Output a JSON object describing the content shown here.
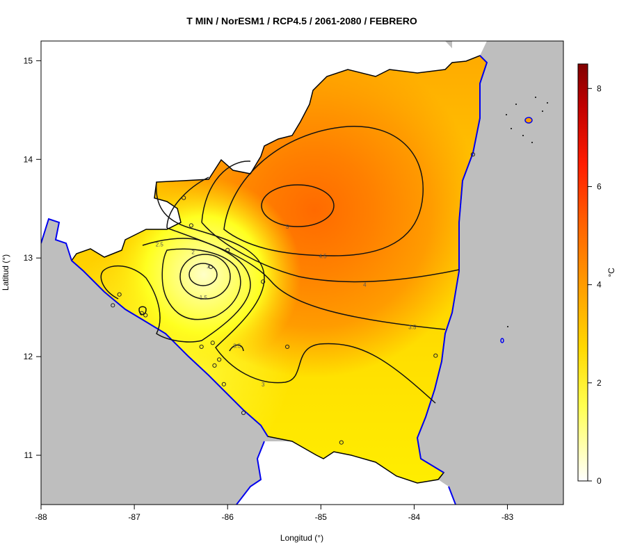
{
  "title": "T MIN / NorESM1 / RCP4.5 / 2061-2080 / FEBRERO",
  "x_axis": {
    "label": "Longitud (°)",
    "ticks": [
      {
        "value": -88,
        "label": "-88"
      },
      {
        "value": -87,
        "label": "-87"
      },
      {
        "value": -86,
        "label": "-86"
      },
      {
        "value": -85,
        "label": "-85"
      },
      {
        "value": -84,
        "label": "-84"
      },
      {
        "value": -83,
        "label": "-83"
      }
    ],
    "range": [
      -88,
      -82.4
    ]
  },
  "y_axis": {
    "label": "Latitud (°)",
    "ticks": [
      {
        "value": 11,
        "label": "11"
      },
      {
        "value": 12,
        "label": "12"
      },
      {
        "value": 13,
        "label": "13"
      },
      {
        "value": 14,
        "label": "14"
      },
      {
        "value": 15,
        "label": "15"
      }
    ],
    "range": [
      10.5,
      15.2
    ]
  },
  "legend": {
    "unit": "°C",
    "range": [
      0,
      8.5
    ],
    "ticks": [
      {
        "value": 0,
        "label": "0"
      },
      {
        "value": 2,
        "label": "2"
      },
      {
        "value": 4,
        "label": "4"
      },
      {
        "value": 6,
        "label": "6"
      },
      {
        "value": 8,
        "label": "8"
      }
    ],
    "colors": [
      "#ffffff",
      "#ffff40",
      "#ffd000",
      "#ff9a00",
      "#ff3a00",
      "#cc0000",
      "#800000"
    ]
  },
  "colors": {
    "ocean": "#bebebe",
    "land_outside": "#ffffff",
    "coast": "#0000ee",
    "border": "#000000"
  },
  "contour_labels": [
    {
      "text": "1",
      "lon": -86.21,
      "lat": 12.92
    },
    {
      "text": "1.5",
      "lon": -86.26,
      "lat": 12.6
    },
    {
      "text": "2",
      "lon": -86.37,
      "lat": 13.06
    },
    {
      "text": "2.5",
      "lon": -86.73,
      "lat": 13.14
    },
    {
      "text": "3",
      "lon": -85.62,
      "lat": 11.72
    },
    {
      "text": "3.5",
      "lon": -85.9,
      "lat": 12.11
    },
    {
      "text": "3.5",
      "lon": -84.02,
      "lat": 12.3
    },
    {
      "text": "4",
      "lon": -84.53,
      "lat": 12.73
    },
    {
      "text": "4.5",
      "lon": -84.98,
      "lat": 13.02
    },
    {
      "text": "5",
      "lon": -85.36,
      "lat": 13.32
    }
  ],
  "stations": [
    {
      "lon": -86.47,
      "lat": 13.61
    },
    {
      "lon": -86.39,
      "lat": 13.33
    },
    {
      "lon": -86.0,
      "lat": 13.08
    },
    {
      "lon": -86.18,
      "lat": 12.91
    },
    {
      "lon": -85.62,
      "lat": 12.76
    },
    {
      "lon": -87.16,
      "lat": 12.63
    },
    {
      "lon": -87.23,
      "lat": 12.52
    },
    {
      "lon": -86.92,
      "lat": 12.44
    },
    {
      "lon": -86.88,
      "lat": 12.42
    },
    {
      "lon": -86.28,
      "lat": 12.1
    },
    {
      "lon": -86.16,
      "lat": 12.14
    },
    {
      "lon": -85.36,
      "lat": 12.1
    },
    {
      "lon": -86.09,
      "lat": 11.97
    },
    {
      "lon": -86.14,
      "lat": 11.91
    },
    {
      "lon": -86.04,
      "lat": 11.72
    },
    {
      "lon": -85.83,
      "lat": 11.43
    },
    {
      "lon": -84.78,
      "lat": 11.13
    },
    {
      "lon": -83.77,
      "lat": 12.01
    },
    {
      "lon": -83.37,
      "lat": 14.05
    }
  ]
}
